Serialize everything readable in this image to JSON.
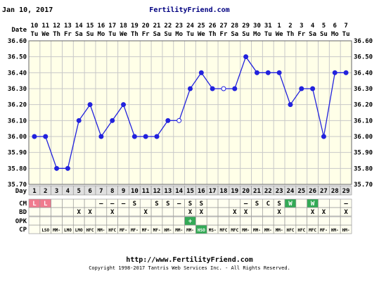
{
  "header": {
    "date": "Jan 10, 2017",
    "site": "FertilityFriend.com"
  },
  "footer": {
    "url": "http://www.FertilityFriend.com",
    "copyright": "Copyright 1998-2017 Tantris Web Services Inc. - All Rights Reserved."
  },
  "row_labels": {
    "date": "Date",
    "day": "Day",
    "cm": "CM",
    "bd": "BD",
    "opk": "OPK",
    "cp": "CP"
  },
  "colors": {
    "line": "#2222dd",
    "grid": "#c8c8c8",
    "background": "#ffffe8",
    "fertile_pink": "#f07b8e",
    "fertile_green": "#33aa55"
  },
  "chart_data": {
    "type": "line",
    "title": "",
    "xlabel": "Day",
    "ylabel": "",
    "ylim": [
      35.7,
      36.6
    ],
    "yticks": [
      "36.60",
      "36.50",
      "36.40",
      "36.30",
      "36.20",
      "36.10",
      "36.00",
      "35.90",
      "35.80",
      "35.70"
    ],
    "dates": [
      "10",
      "11",
      "12",
      "13",
      "14",
      "15",
      "16",
      "17",
      "18",
      "19",
      "20",
      "21",
      "22",
      "23",
      "24",
      "25",
      "26",
      "27",
      "28",
      "29",
      "30",
      "31",
      "1",
      "2",
      "3",
      "4",
      "5",
      "6",
      "7"
    ],
    "weekdays": [
      "Tu",
      "We",
      "Th",
      "Fr",
      "Sa",
      "Su",
      "Mo",
      "Tu",
      "We",
      "Th",
      "Fr",
      "Sa",
      "Su",
      "Mo",
      "Tu",
      "We",
      "Th",
      "Fr",
      "Sa",
      "Su",
      "Mo",
      "Tu",
      "We",
      "Th",
      "Fr",
      "Sa",
      "Su",
      "Mo",
      "Tu"
    ],
    "days": [
      "1",
      "2",
      "3",
      "4",
      "5",
      "6",
      "7",
      "8",
      "9",
      "10",
      "11",
      "12",
      "13",
      "14",
      "15",
      "16",
      "17",
      "18",
      "19",
      "20",
      "21",
      "22",
      "23",
      "24",
      "25",
      "26",
      "27",
      "28",
      "29"
    ],
    "series": [
      {
        "values": [
          36.0,
          36.0,
          35.8,
          35.8,
          36.1,
          36.2,
          36.0,
          36.1,
          36.2,
          36.0,
          36.0,
          36.0,
          36.1,
          36.1,
          36.3,
          36.4,
          36.3,
          36.3,
          36.3,
          36.5,
          36.4,
          36.4,
          36.4,
          36.2,
          36.3,
          36.3,
          36.0,
          36.4,
          36.4
        ],
        "hollow": [
          false,
          false,
          false,
          false,
          false,
          false,
          false,
          false,
          false,
          false,
          false,
          false,
          false,
          true,
          false,
          false,
          false,
          true,
          false,
          false,
          false,
          false,
          false,
          false,
          false,
          false,
          false,
          false,
          false
        ]
      }
    ],
    "cm": [
      "L",
      "L",
      "",
      "",
      "",
      "",
      "—",
      "—",
      "—",
      "S",
      "",
      "S",
      "S",
      "—",
      "S",
      "S",
      "",
      "",
      "",
      "—",
      "S",
      "C",
      "S",
      "W",
      "",
      "W",
      "",
      "",
      "—"
    ],
    "cm_colors": [
      "pink",
      "pink",
      "",
      "",
      "",
      "",
      "",
      "",
      "",
      "",
      "",
      "",
      "",
      "",
      "",
      "",
      "",
      "",
      "",
      "",
      "",
      "",
      "",
      "green",
      "",
      "green",
      "",
      "",
      ""
    ],
    "bd": [
      "",
      "",
      "",
      "",
      "X",
      "X",
      "",
      "X",
      "",
      "",
      "X",
      "",
      "",
      "",
      "X",
      "X",
      "",
      "",
      "X",
      "X",
      "",
      "",
      "X",
      "",
      "",
      "X",
      "X",
      "",
      "X"
    ],
    "opk": [
      "",
      "",
      "",
      "",
      "",
      "",
      "",
      "",
      "",
      "",
      "",
      "",
      "",
      "",
      "+",
      "",
      "",
      "",
      "",
      "",
      "",
      "",
      "",
      "",
      "",
      "",
      "",
      "",
      ""
    ],
    "opk_colors": [
      "",
      "",
      "",
      "",
      "",
      "",
      "",
      "",
      "",
      "",
      "",
      "",
      "",
      "",
      "green",
      "",
      "",
      "",
      "",
      "",
      "",
      "",
      "",
      "",
      "",
      "",
      "",
      "",
      ""
    ],
    "cp": [
      "",
      "LSO",
      "MM-",
      "LMO",
      "LMO",
      "HFC",
      "MM-",
      "HFC",
      "MF-",
      "MF-",
      "MF-",
      "MF-",
      "HM-",
      "MM-",
      "MM-",
      "HSO",
      "MS-",
      "MFC",
      "MFC",
      "MM-",
      "MM-",
      "MM-",
      "MM-",
      "HFC",
      "HFC",
      "MFC",
      "MF-",
      "HM-",
      "HM-"
    ],
    "cp_colors": [
      "",
      "",
      "",
      "",
      "",
      "",
      "",
      "",
      "",
      "",
      "",
      "",
      "",
      "",
      "",
      "green",
      "",
      "",
      "",
      "",
      "",
      "",
      "",
      "",
      "",
      "",
      "",
      "",
      ""
    ]
  }
}
